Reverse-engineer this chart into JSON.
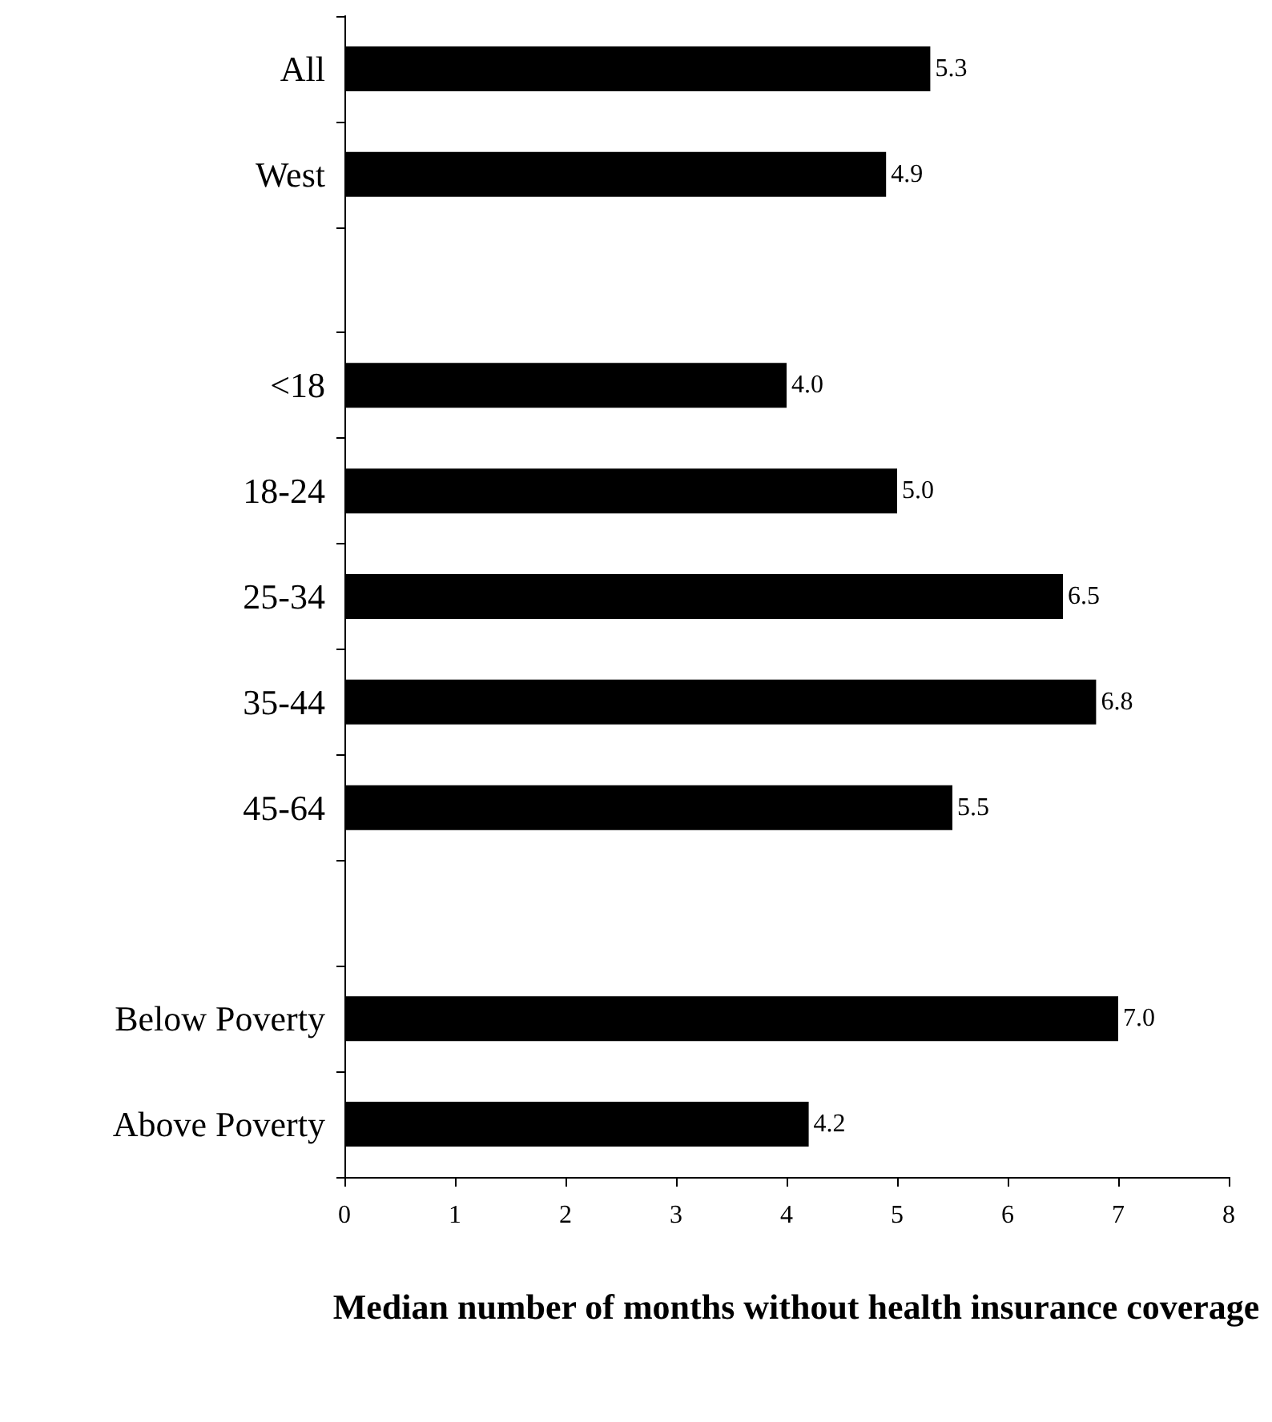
{
  "chart_data": {
    "type": "bar",
    "orientation": "horizontal",
    "xlabel": "Median number of months without health insurance coverage",
    "categories": [
      "All",
      "West",
      null,
      "<18",
      "18-24",
      "25-34",
      "35-44",
      "45-64",
      null,
      "Below Poverty",
      "Above Poverty"
    ],
    "values": [
      5.3,
      4.9,
      null,
      4.0,
      5.0,
      6.5,
      6.8,
      5.5,
      null,
      7.0,
      4.2
    ],
    "value_labels": [
      "5.3",
      "4.9",
      null,
      "4.0",
      "5.0",
      "6.5",
      "6.8",
      "5.5",
      null,
      "7.0",
      "4.2"
    ],
    "color": "#000000",
    "xlim": [
      0,
      8
    ],
    "xticks": [
      0,
      1,
      2,
      3,
      4,
      5,
      6,
      7,
      8
    ],
    "grid": false
  }
}
